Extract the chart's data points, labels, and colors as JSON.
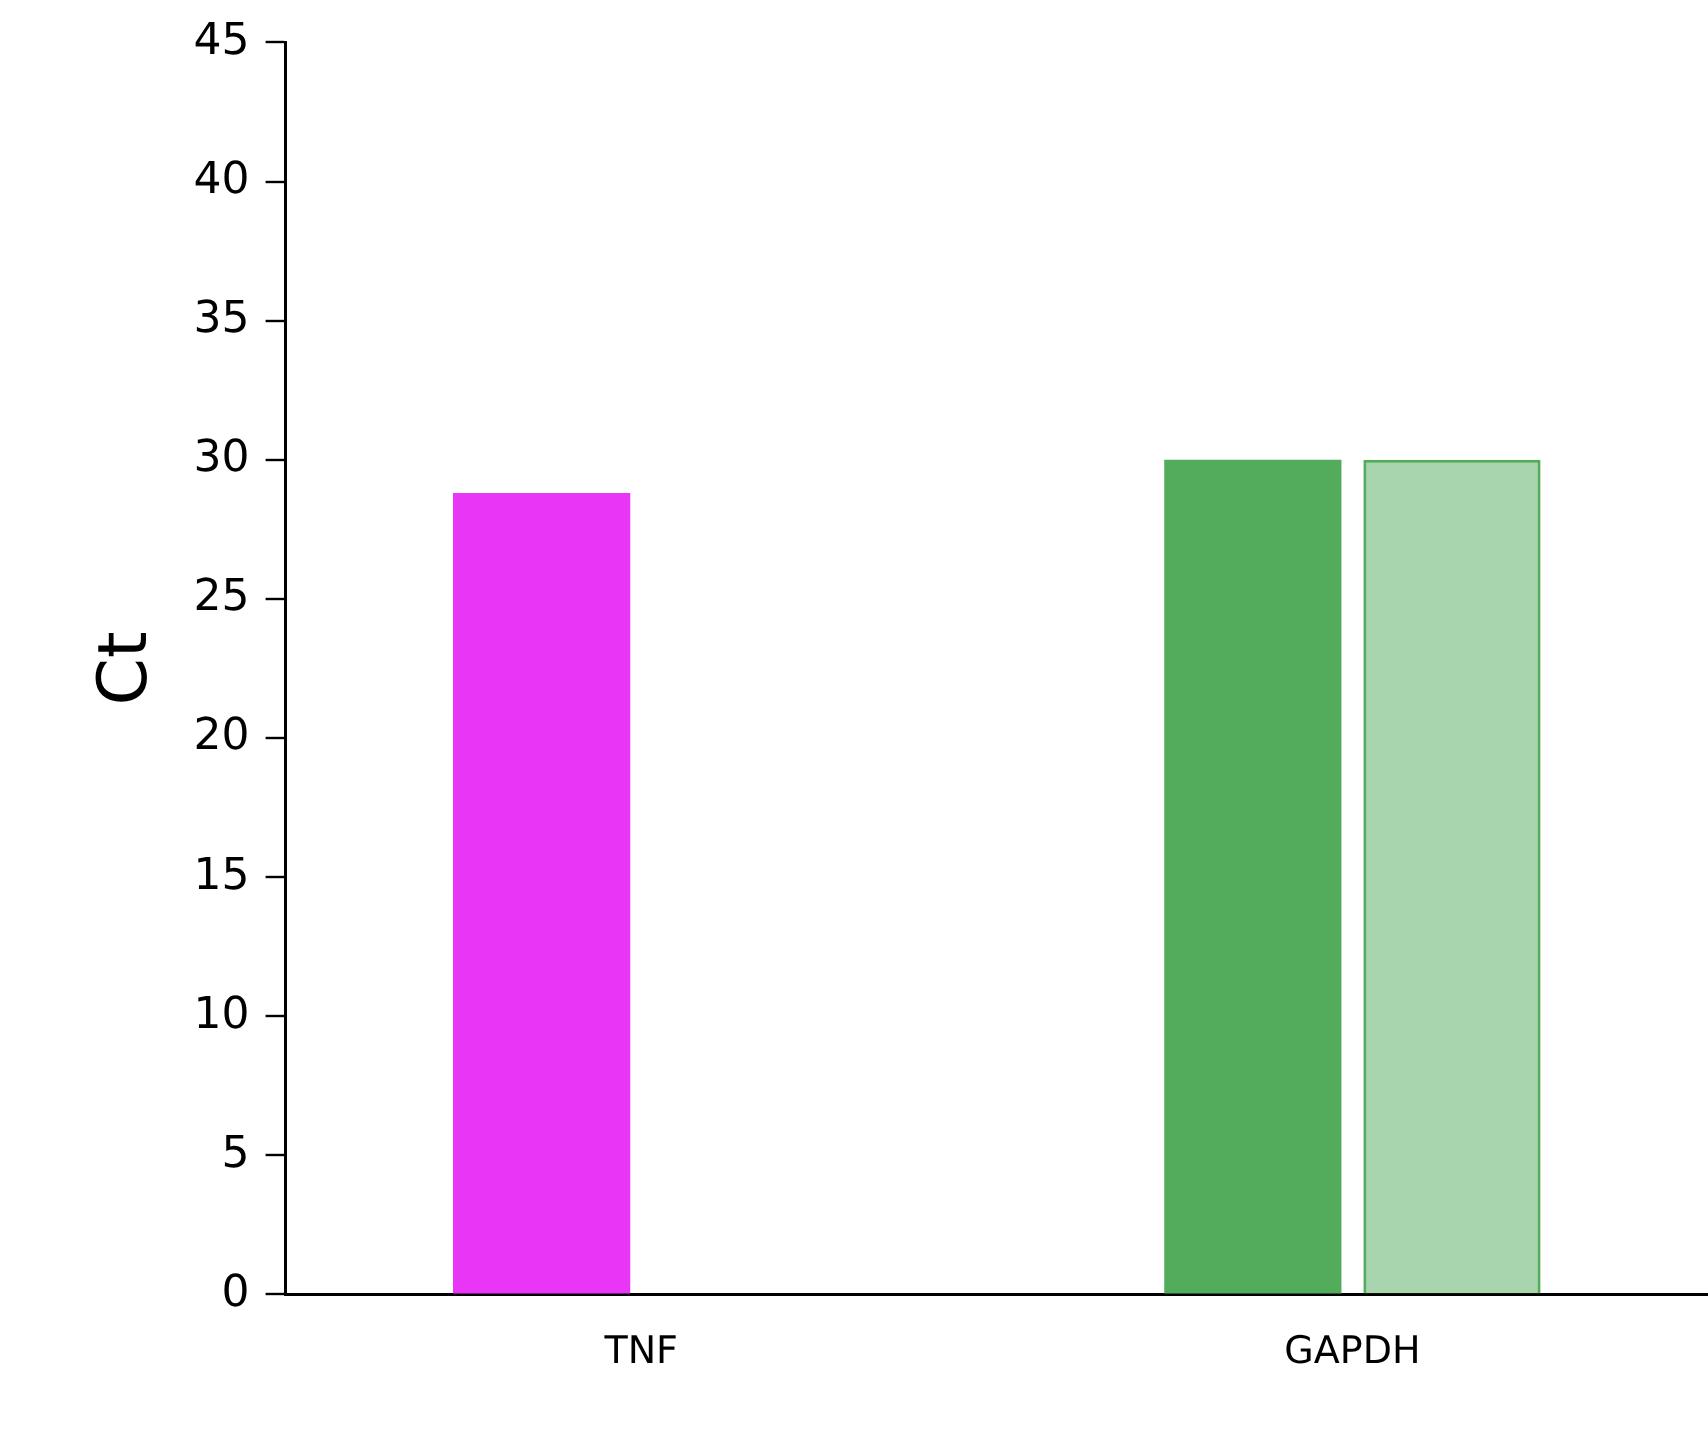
{
  "chart_data": {
    "type": "bar",
    "ylabel": "Ct",
    "categories": [
      "TNF",
      "GAPDH"
    ],
    "series": [
      {
        "colors": [
          "#e935f5",
          "#52ac5c"
        ],
        "values": [
          28.8,
          30.0
        ]
      },
      {
        "color": "#52ac5c",
        "values": [
          null,
          30.0
        ]
      }
    ],
    "ylim": [
      0,
      45
    ],
    "yticks": [
      0,
      5,
      10,
      15,
      20,
      25,
      30,
      35,
      40,
      45
    ],
    "grid": false,
    "legend": false
  }
}
